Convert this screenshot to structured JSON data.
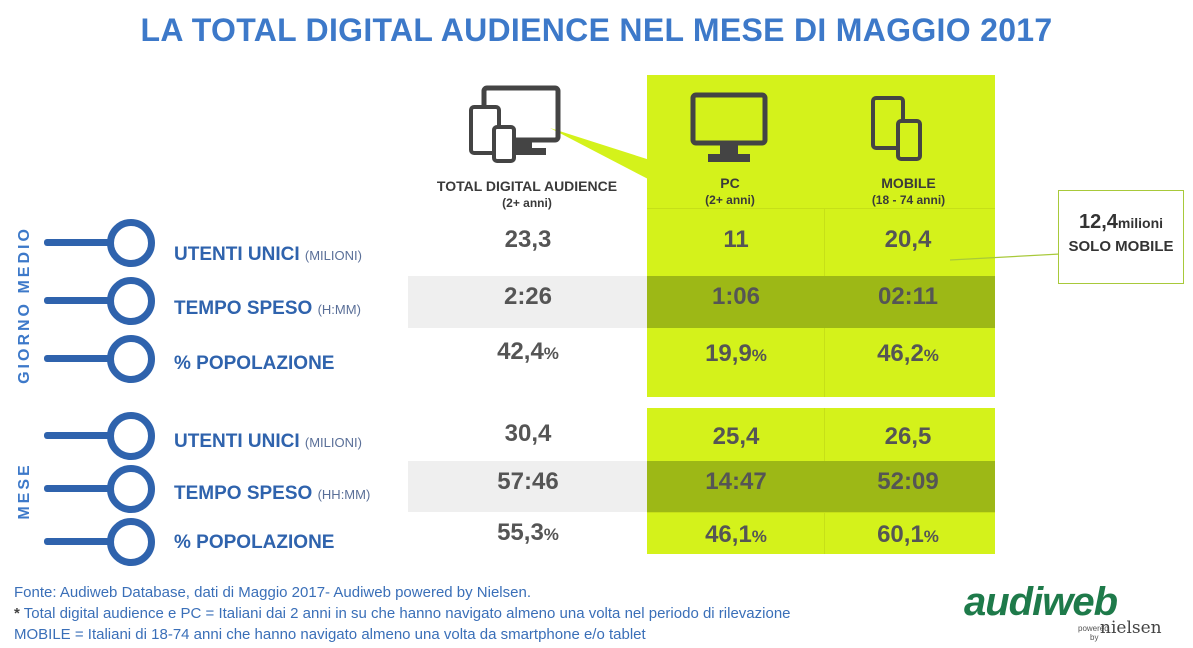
{
  "title": "LA TOTAL DIGITAL AUDIENCE NEL MESE DI MAGGIO 2017",
  "columns": [
    {
      "label": "TOTAL DIGITAL AUDIENCE",
      "sub": "(2+ anni)"
    },
    {
      "label": "PC",
      "sub": "(2+ anni)"
    },
    {
      "label": "MOBILE",
      "sub": "(18 - 74 anni)"
    }
  ],
  "sections": {
    "giorno_medio": "GIORNO MEDIO",
    "mese": "MESE"
  },
  "rows": [
    {
      "label": "UTENTI UNICI",
      "unit": "(MILIONI)",
      "tda": "23,3",
      "pc": "11",
      "mobile": "20,4"
    },
    {
      "label": "TEMPO SPESO",
      "unit": "(H:MM)",
      "tda": "2:26",
      "pc": "1:06",
      "mobile": "02:11"
    },
    {
      "label": "% POPOLAZIONE",
      "unit": "",
      "tda": "42,4",
      "pc": "19,9",
      "mobile": "46,2",
      "pct": "%"
    },
    {
      "label": "UTENTI UNICI",
      "unit": "(MILIONI)",
      "tda": "30,4",
      "pc": "25,4",
      "mobile": "26,5"
    },
    {
      "label": "TEMPO SPESO",
      "unit": "(HH:MM)",
      "tda": "57:46",
      "pc": "14:47",
      "mobile": "52:09"
    },
    {
      "label": "% POPOLAZIONE",
      "unit": "",
      "tda": "55,3",
      "pc": "46,1",
      "mobile": "60,1",
      "pct": "%"
    }
  ],
  "callout": {
    "value": "12,4",
    "unit": "milioni",
    "text": "SOLO MOBILE"
  },
  "footer": {
    "line1": "Fonte: Audiweb Database, dati di Maggio 2017- Audiweb powered by Nielsen.",
    "star": "*",
    "line2": " Total digital audience e PC = Italiani dai 2 anni in su che hanno navigato almeno una volta nel periodo di rilevazione",
    "line3": "MOBILE = Italiani di 18-74 anni che hanno navigato almeno una volta da smartphone e/o tablet"
  },
  "logo": {
    "brand": "audiweb",
    "powered": "powered",
    "by": "by",
    "partner": "nielsen"
  },
  "colors": {
    "title": "#3d79c9",
    "green": "#d4f21b",
    "dark_green": "#9db816",
    "label_blue": "#2f63ad"
  },
  "icons": [
    "multi-device-icon",
    "monitor-icon",
    "tablet-phone-icon"
  ]
}
